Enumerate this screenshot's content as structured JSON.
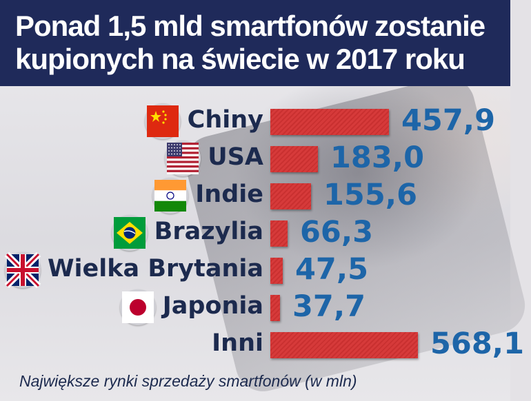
{
  "title_lines": [
    "Ponad 1,5 mld smartfonów zostanie",
    "kupionych na świecie w  2017 roku"
  ],
  "footnote": "Największe rynki sprzedaży smartfonów (w mln)",
  "colors": {
    "header": "#1f2a5a",
    "bar": "#d63a3a",
    "value": "#1d65a8",
    "label": "#1c2a4e"
  },
  "chart_data": {
    "type": "bar",
    "orientation": "horizontal",
    "title": "Ponad 1,5 mld smartfonów zostanie kupionych na świecie w  2017 roku",
    "subtitle": "Największe rynki sprzedaży smartfonów (w mln)",
    "categories": [
      "Chiny",
      "USA",
      "Indie",
      "Brazylia",
      "Wielka Brytania",
      "Japonia",
      "Inni"
    ],
    "values": [
      457.9,
      183.0,
      155.6,
      66.3,
      47.5,
      37.7,
      568.1
    ],
    "value_labels": [
      "457,9",
      "183,0",
      "155,6",
      "66,3",
      "47,5",
      "37,7",
      "568,1"
    ],
    "flag_icons": [
      "china-flag-icon",
      "usa-flag-icon",
      "india-flag-icon",
      "brazil-flag-icon",
      "uk-flag-icon",
      "japan-flag-icon",
      ""
    ],
    "grid": false,
    "legend": "none"
  }
}
